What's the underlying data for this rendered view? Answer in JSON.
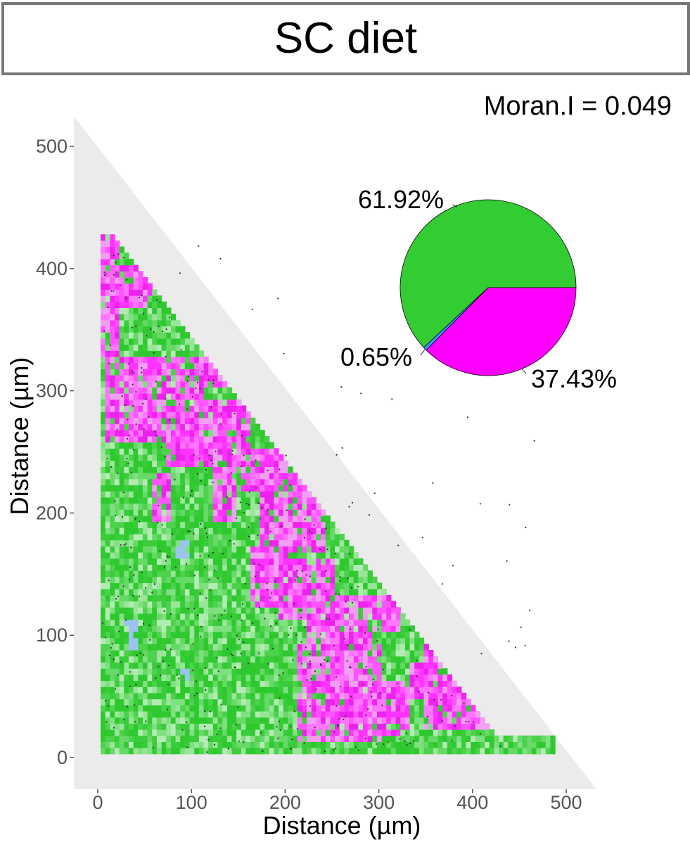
{
  "title": "SC diet",
  "stat": "Moran.I = 0.049",
  "colors": {
    "green": "#33cc33",
    "magenta": "#ff00ff",
    "blue": "#3399ff",
    "panel": "#ebebeb"
  },
  "chart_data": [
    {
      "type": "heatmap",
      "xlabel": "Distance (µm)",
      "ylabel": "Distance (µm)",
      "xlim": [
        0,
        500
      ],
      "ylim": [
        0,
        500
      ],
      "x_ticks": [
        "0",
        "100",
        "200",
        "300",
        "400",
        "500"
      ],
      "y_ticks": [
        "0",
        "100",
        "200",
        "300",
        "400",
        "500"
      ],
      "categories": [
        "green",
        "blue",
        "magenta"
      ],
      "magenta_regions": [
        {
          "x0": 3,
          "x1": 20,
          "y0": 325,
          "y1": 425
        },
        {
          "x0": 20,
          "x1": 55,
          "y0": 365,
          "y1": 400
        },
        {
          "x0": 5,
          "x1": 110,
          "y0": 255,
          "y1": 325
        },
        {
          "x0": 110,
          "x1": 150,
          "y0": 300,
          "y1": 355
        },
        {
          "x0": 70,
          "x1": 160,
          "y0": 235,
          "y1": 290
        },
        {
          "x0": 150,
          "x1": 230,
          "y0": 215,
          "y1": 250
        },
        {
          "x0": 170,
          "x1": 240,
          "y0": 165,
          "y1": 225
        },
        {
          "x0": 160,
          "x1": 200,
          "y0": 120,
          "y1": 170
        },
        {
          "x0": 190,
          "x1": 250,
          "y0": 110,
          "y1": 160
        },
        {
          "x0": 250,
          "x1": 290,
          "y0": 225,
          "y1": 255
        },
        {
          "x0": 220,
          "x1": 290,
          "y0": 85,
          "y1": 130
        },
        {
          "x0": 280,
          "x1": 320,
          "y0": 100,
          "y1": 130
        },
        {
          "x0": 210,
          "x1": 300,
          "y0": 10,
          "y1": 90
        },
        {
          "x0": 250,
          "x1": 280,
          "y0": 50,
          "y1": 110
        },
        {
          "x0": 300,
          "x1": 330,
          "y0": 15,
          "y1": 60
        },
        {
          "x0": 345,
          "x1": 380,
          "y0": 70,
          "y1": 95
        },
        {
          "x0": 330,
          "x1": 400,
          "y0": 45,
          "y1": 75
        },
        {
          "x0": 345,
          "x1": 420,
          "y0": 20,
          "y1": 45
        },
        {
          "x0": 120,
          "x1": 145,
          "y0": 190,
          "y1": 240
        },
        {
          "x0": 55,
          "x1": 75,
          "y0": 190,
          "y1": 230
        }
      ],
      "blue_regions": [
        {
          "x0": 25,
          "x1": 40,
          "y0": 85,
          "y1": 110
        },
        {
          "x0": 80,
          "x1": 95,
          "y0": 160,
          "y1": 175
        },
        {
          "x0": 85,
          "x1": 95,
          "y0": 60,
          "y1": 70
        }
      ]
    },
    {
      "type": "pie",
      "labels": [
        "61.92%",
        "0.65%",
        "37.43%"
      ],
      "values": [
        61.92,
        0.65,
        37.43
      ],
      "colors": [
        "#33cc33",
        "#3399ff",
        "#ff00ff"
      ]
    }
  ]
}
